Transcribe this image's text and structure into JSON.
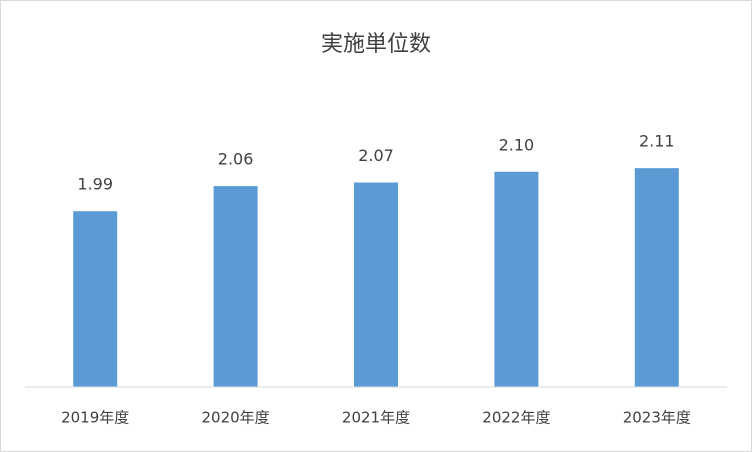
{
  "chart_data": {
    "type": "bar",
    "title": "実施単位数",
    "categories": [
      "2019年度",
      "2020年度",
      "2021年度",
      "2022年度",
      "2023年度"
    ],
    "values": [
      1.99,
      2.06,
      2.07,
      2.1,
      2.11
    ],
    "value_labels": [
      "1.99",
      "2.06",
      "2.07",
      "2.10",
      "2.11"
    ],
    "color": "#5b9bd5",
    "ylim": [
      1.5,
      2.3
    ]
  }
}
